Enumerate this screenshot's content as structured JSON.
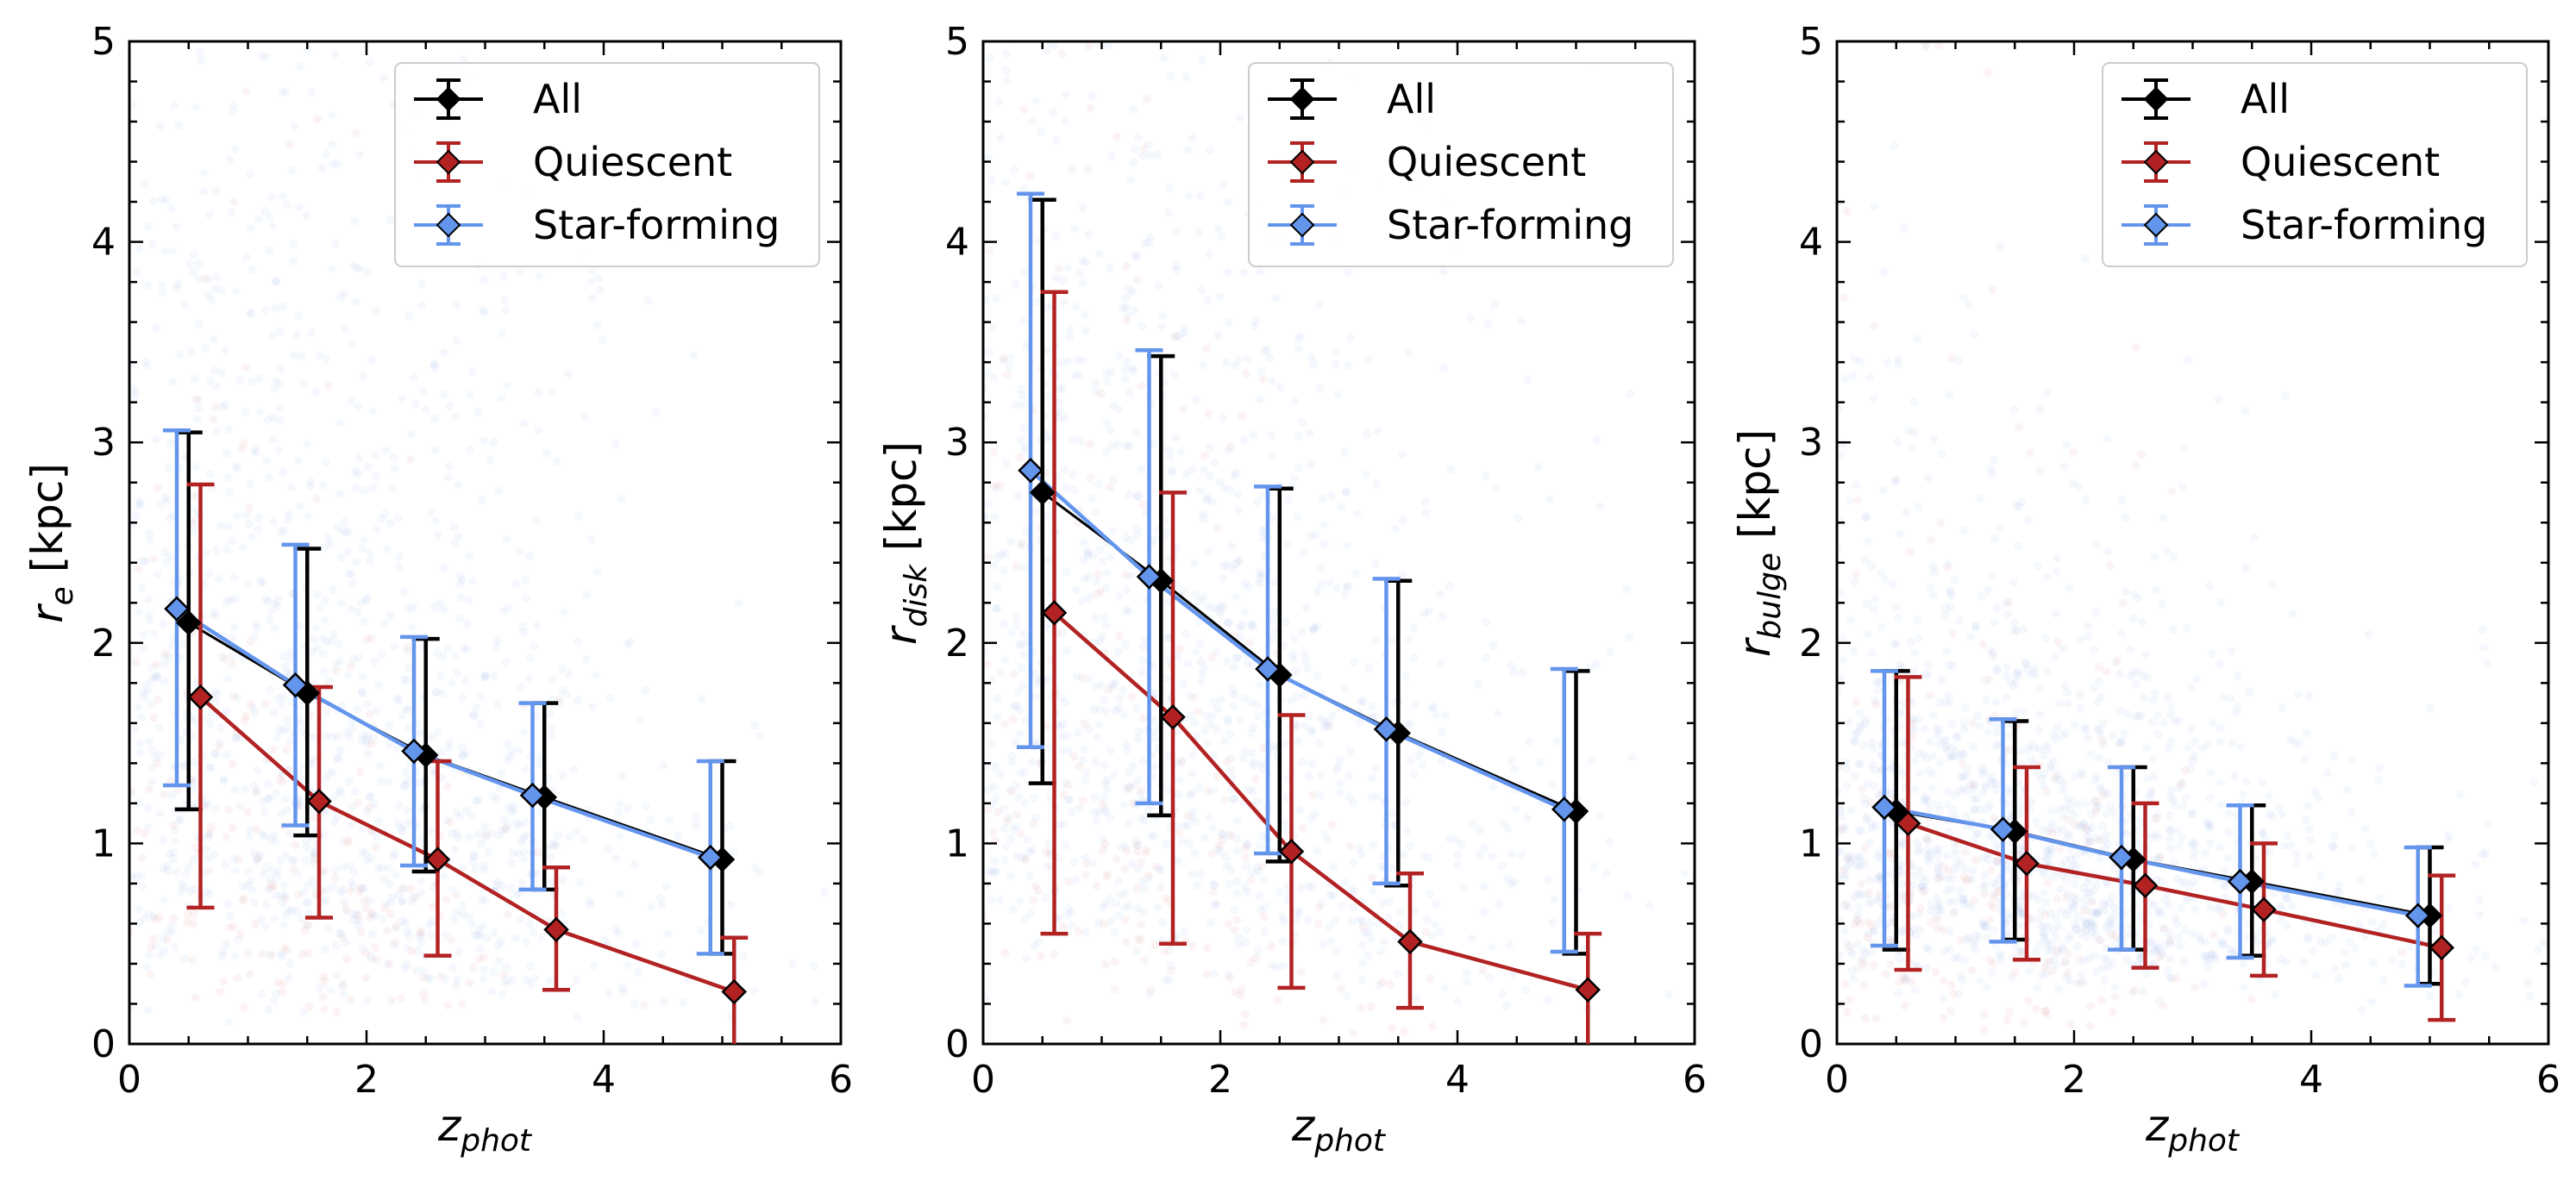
{
  "figure": {
    "panels": [
      {
        "ylabel_main": "r",
        "ylabel_sub": "e",
        "ylabel_unit": " [kpc]"
      },
      {
        "ylabel_main": "r",
        "ylabel_sub": "disk",
        "ylabel_unit": " [kpc]"
      },
      {
        "ylabel_main": "r",
        "ylabel_sub": "bulge",
        "ylabel_unit": " [kpc]"
      }
    ],
    "xlabel_main": "z",
    "xlabel_sub": "phot",
    "legend": [
      "All",
      "Quiescent",
      "Star-forming"
    ],
    "colors": {
      "All": "#000000",
      "Quiescent": "#b22222",
      "Star-forming": "#6495ed",
      "quiescent_scatter": "#e8b4b4",
      "sf_scatter": "#9cb8ee"
    }
  },
  "chart_data": [
    {
      "type": "line",
      "title": "",
      "xlabel": "z_phot",
      "ylabel": "r_e [kpc]",
      "xlim": [
        0,
        6
      ],
      "ylim": [
        0,
        5
      ],
      "xticks": [
        "0",
        "2",
        "4",
        "6"
      ],
      "yticks": [
        "0",
        "1",
        "2",
        "3",
        "4",
        "5"
      ],
      "legend_position": "top-right",
      "series": [
        {
          "name": "All",
          "x": [
            0.5,
            1.5,
            2.5,
            3.5,
            5.0
          ],
          "y": [
            2.1,
            1.75,
            1.44,
            1.23,
            0.92
          ],
          "err_low": [
            1.17,
            1.04,
            0.86,
            0.77,
            0.45
          ],
          "err_high": [
            3.05,
            2.47,
            2.02,
            1.7,
            1.41
          ]
        },
        {
          "name": "Quiescent",
          "x": [
            0.6,
            1.6,
            2.6,
            3.6,
            5.1
          ],
          "y": [
            1.73,
            1.21,
            0.92,
            0.57,
            0.26
          ],
          "err_low": [
            0.68,
            0.63,
            0.44,
            0.27,
            0.0
          ],
          "err_high": [
            2.79,
            1.78,
            1.41,
            0.88,
            0.53
          ]
        },
        {
          "name": "Star-forming",
          "x": [
            0.4,
            1.4,
            2.4,
            3.4,
            4.9
          ],
          "y": [
            2.17,
            1.79,
            1.46,
            1.24,
            0.93
          ],
          "err_low": [
            1.29,
            1.09,
            0.89,
            0.77,
            0.45
          ],
          "err_high": [
            3.06,
            2.49,
            2.03,
            1.7,
            1.41
          ]
        }
      ]
    },
    {
      "type": "line",
      "title": "",
      "xlabel": "z_phot",
      "ylabel": "r_disk [kpc]",
      "xlim": [
        0,
        6
      ],
      "ylim": [
        0,
        5
      ],
      "xticks": [
        "0",
        "2",
        "4",
        "6"
      ],
      "yticks": [
        "0",
        "1",
        "2",
        "3",
        "4",
        "5"
      ],
      "legend_position": "top-right",
      "series": [
        {
          "name": "All",
          "x": [
            0.5,
            1.5,
            2.5,
            3.5,
            5.0
          ],
          "y": [
            2.75,
            2.31,
            1.84,
            1.55,
            1.16
          ],
          "err_low": [
            1.3,
            1.14,
            0.91,
            0.79,
            0.45
          ],
          "err_high": [
            4.21,
            3.43,
            2.77,
            2.31,
            1.86
          ]
        },
        {
          "name": "Quiescent",
          "x": [
            0.6,
            1.6,
            2.6,
            3.6,
            5.1
          ],
          "y": [
            2.15,
            1.63,
            0.96,
            0.51,
            0.27
          ],
          "err_low": [
            0.55,
            0.5,
            0.28,
            0.18,
            0.0
          ],
          "err_high": [
            3.75,
            2.75,
            1.64,
            0.85,
            0.55
          ]
        },
        {
          "name": "Star-forming",
          "x": [
            0.4,
            1.4,
            2.4,
            3.4,
            4.9
          ],
          "y": [
            2.86,
            2.33,
            1.87,
            1.57,
            1.17
          ],
          "err_low": [
            1.48,
            1.2,
            0.95,
            0.8,
            0.46
          ],
          "err_high": [
            4.24,
            3.46,
            2.78,
            2.32,
            1.87
          ]
        }
      ]
    },
    {
      "type": "line",
      "title": "",
      "xlabel": "z_phot",
      "ylabel": "r_bulge [kpc]",
      "xlim": [
        0,
        6
      ],
      "ylim": [
        0,
        5
      ],
      "xticks": [
        "0",
        "2",
        "4",
        "6"
      ],
      "yticks": [
        "0",
        "1",
        "2",
        "3",
        "4",
        "5"
      ],
      "legend_position": "top-right",
      "series": [
        {
          "name": "All",
          "x": [
            0.5,
            1.5,
            2.5,
            3.5,
            5.0
          ],
          "y": [
            1.16,
            1.06,
            0.92,
            0.81,
            0.64
          ],
          "err_low": [
            0.47,
            0.52,
            0.47,
            0.44,
            0.3
          ],
          "err_high": [
            1.86,
            1.61,
            1.38,
            1.19,
            0.98
          ]
        },
        {
          "name": "Quiescent",
          "x": [
            0.6,
            1.6,
            2.6,
            3.6,
            5.1
          ],
          "y": [
            1.1,
            0.9,
            0.79,
            0.67,
            0.48
          ],
          "err_low": [
            0.37,
            0.42,
            0.38,
            0.34,
            0.12
          ],
          "err_high": [
            1.83,
            1.38,
            1.2,
            1.0,
            0.84
          ]
        },
        {
          "name": "Star-forming",
          "x": [
            0.4,
            1.4,
            2.4,
            3.4,
            4.9
          ],
          "y": [
            1.18,
            1.07,
            0.93,
            0.81,
            0.64
          ],
          "err_low": [
            0.49,
            0.51,
            0.47,
            0.43,
            0.29
          ],
          "err_high": [
            1.86,
            1.62,
            1.38,
            1.19,
            0.98
          ]
        }
      ]
    }
  ]
}
